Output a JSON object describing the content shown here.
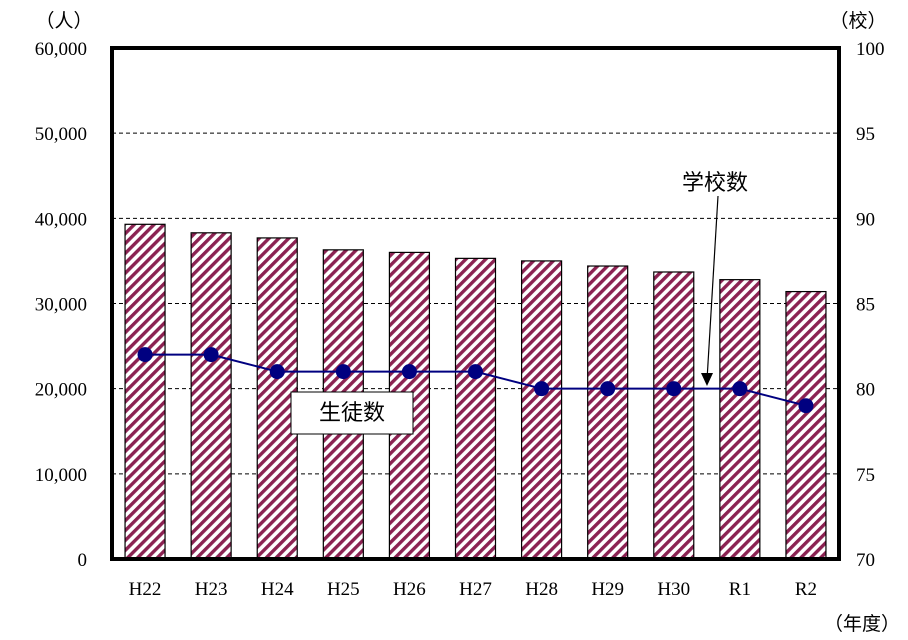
{
  "chart_data": {
    "type": "bar+line",
    "categories": [
      "H22",
      "H23",
      "H24",
      "H25",
      "H26",
      "H27",
      "H28",
      "H29",
      "H30",
      "R1",
      "R2"
    ],
    "series": [
      {
        "name": "生徒数",
        "kind": "bar",
        "axis": "left",
        "values": [
          39300,
          38300,
          37700,
          36300,
          36000,
          35300,
          35000,
          34400,
          33700,
          32800,
          31400
        ]
      },
      {
        "name": "学校数",
        "kind": "line",
        "axis": "right",
        "values": [
          82,
          82,
          81,
          81,
          81,
          81,
          80,
          80,
          80,
          80,
          79
        ]
      }
    ],
    "y_left": {
      "unit": "（人）",
      "ylim": [
        0,
        60000
      ],
      "ticks": [
        "0",
        "10,000",
        "20,000",
        "30,000",
        "40,000",
        "50,000",
        "60,000"
      ]
    },
    "y_right": {
      "unit": "（校）",
      "ylim": [
        70,
        100
      ],
      "ticks": [
        "70",
        "75",
        "80",
        "85",
        "90",
        "95",
        "100"
      ]
    },
    "x_unit": "（年度）",
    "grid": "horizontal dashed",
    "colors": {
      "bar_fill": "#8b2252",
      "line": "#000080",
      "marker": "#000080"
    }
  }
}
